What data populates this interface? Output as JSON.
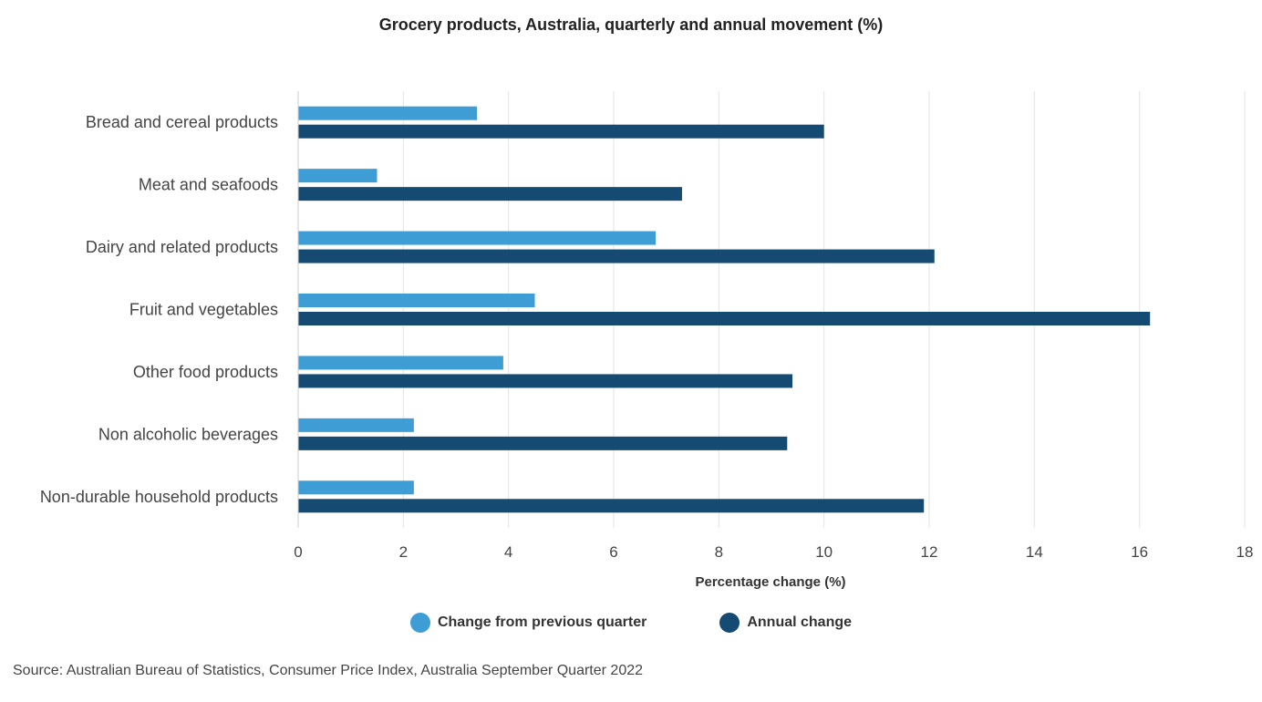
{
  "chart_data": {
    "type": "bar",
    "orientation": "horizontal",
    "title": "Grocery products, Australia, quarterly and annual movement (%)",
    "xlabel": "Percentage change (%)",
    "ylabel": "",
    "xlim": [
      0,
      18
    ],
    "xticks": [
      "0",
      "2",
      "4",
      "6",
      "8",
      "10",
      "12",
      "14",
      "16",
      "18"
    ],
    "grid": true,
    "legend_position": "bottom",
    "categories": [
      "Bread and cereal products",
      "Meat and seafoods",
      "Dairy and related products",
      "Fruit and vegetables",
      "Other food products",
      "Non alcoholic beverages",
      "Non-durable household products"
    ],
    "series": [
      {
        "name": "Change from previous quarter",
        "color": "#3f9dd5",
        "values": [
          3.4,
          1.5,
          6.8,
          4.5,
          3.9,
          2.2,
          2.2
        ]
      },
      {
        "name": "Annual change",
        "color": "#154a72",
        "values": [
          10.0,
          7.3,
          12.1,
          16.2,
          9.4,
          9.3,
          11.9
        ]
      }
    ]
  },
  "source": "Source: Australian Bureau of Statistics, Consumer Price Index, Australia September Quarter 2022"
}
